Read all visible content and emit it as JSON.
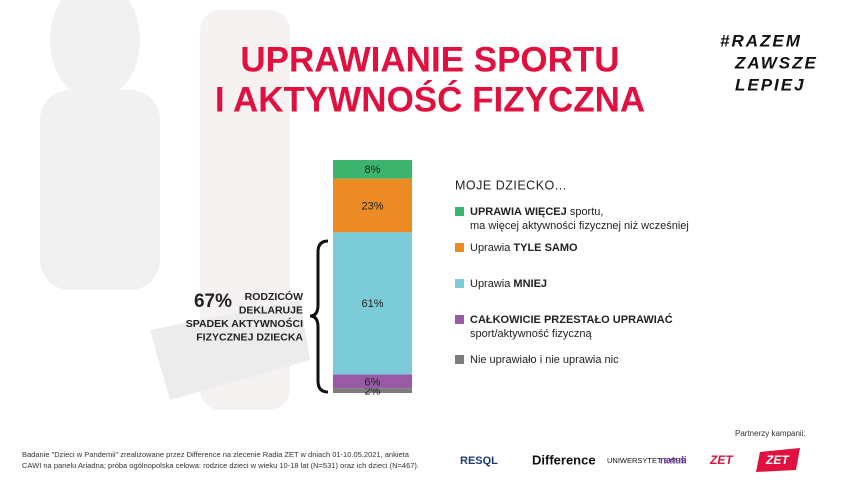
{
  "chart_data": {
    "type": "stacked-bar",
    "title": [
      "UPRAWIANIE SPORTU",
      "I AKTYWNOŚĆ FIZYCZNA"
    ],
    "hashtag": [
      "#RAZEM",
      "ZAWSZE",
      "LEPIEJ"
    ],
    "legend_title": "MOJE DZIECKO...",
    "ylim": [
      0,
      100
    ],
    "series": [
      {
        "color": "#3cb46e",
        "values": [
          8
        ],
        "value_labels": [
          "8%"
        ],
        "label": [
          [
            {
              "text": "UPRAWIA WIĘCEJ",
              "bold": true
            },
            {
              "text": " sportu,"
            }
          ],
          [
            {
              "text": "ma więcej aktywności fizycznej niż wcześniej"
            }
          ]
        ]
      },
      {
        "color": "#ec8a23",
        "values": [
          23
        ],
        "value_labels": [
          "23%"
        ],
        "label": [
          [
            {
              "text": "Uprawia "
            },
            {
              "text": "TYLE SAMO",
              "bold": true
            }
          ]
        ]
      },
      {
        "color": "#7ccbd9",
        "values": [
          61
        ],
        "value_labels": [
          "61%"
        ],
        "label": [
          [
            {
              "text": "Uprawia "
            },
            {
              "text": "MNIEJ",
              "bold": true
            }
          ]
        ]
      },
      {
        "color": "#9a5ba6",
        "values": [
          6
        ],
        "value_labels": [
          "6%"
        ],
        "label": [
          [
            {
              "text": "CAŁKOWICIE PRZESTAŁO UPRAWIAĆ",
              "bold": true
            }
          ],
          [
            {
              "text": "sport/aktywność fizyczną"
            }
          ]
        ]
      },
      {
        "color": "#7d7d7d",
        "values": [
          2
        ],
        "value_labels": [
          "2%"
        ],
        "label": [
          [
            {
              "text": "Nie uprawiało i nie uprawia nic"
            }
          ]
        ]
      }
    ],
    "annotation": {
      "value": 67,
      "value_label": "67%",
      "text": [
        "RODZICÓW",
        "DEKLARUJE",
        "SPADEK AKTYWNOŚCI",
        "FIZYCZNEJ DZIECKA"
      ]
    },
    "footnote": [
      "Badanie \"Dzieci w Pandemii\" zrealizowane przez Difference na zlecenie Radia ZET w dniach 01-10.05.2021, ankieta",
      "CAWI na panelu Ariadna; próba ogólnopolska celowa: rodzice dzieci w wieku 10-18 lat (N=531) oraz ich dzieci (N=467)."
    ],
    "partners_label": "Partnerzy kampanii:",
    "partners": [
      "RESQL",
      "Difference",
      "UNIWERSYTET SWPS",
      "natuli",
      "ZET",
      "ZET"
    ]
  }
}
